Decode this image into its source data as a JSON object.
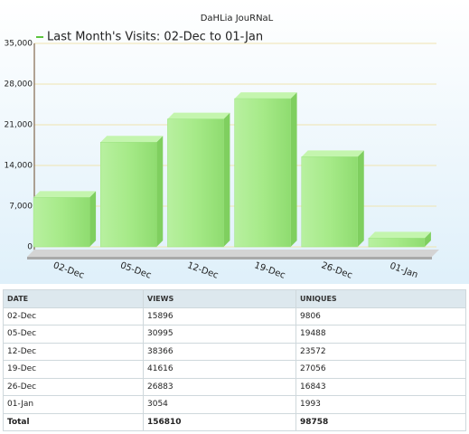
{
  "chart_data": {
    "type": "bar3d",
    "title": "DaHLia JouRNaL",
    "legend": "Last Month's Visits: 02-Dec to 01-Jan",
    "categories": [
      "02-Dec",
      "05-Dec",
      "12-Dec",
      "19-Dec",
      "26-Dec",
      "01-Jan"
    ],
    "values": [
      8500,
      18000,
      22000,
      25500,
      15500,
      1500
    ],
    "color": "#9be37f",
    "legend_color": "#5cc43e",
    "ylim": [
      0,
      35000
    ],
    "yticks": [
      0,
      {
        "value": 7000,
        "label": "7,000"
      },
      {
        "value": 14000,
        "label": "14,000"
      },
      {
        "value": 21000,
        "label": "21,000"
      },
      {
        "value": 28000,
        "label": "28,000"
      },
      {
        "value": 35000,
        "label": "35,000"
      }
    ],
    "grid": true
  },
  "table": {
    "columns": [
      "DATE",
      "VIEWS",
      "UNIQUES"
    ],
    "rows": [
      [
        "02-Dec",
        15896,
        9806
      ],
      [
        "05-Dec",
        30995,
        19488
      ],
      [
        "12-Dec",
        38366,
        23572
      ],
      [
        "19-Dec",
        41616,
        27056
      ],
      [
        "26-Dec",
        26883,
        16843
      ],
      [
        "01-Jan",
        3054,
        1993
      ]
    ],
    "total": [
      "Total",
      156810,
      98758
    ]
  }
}
